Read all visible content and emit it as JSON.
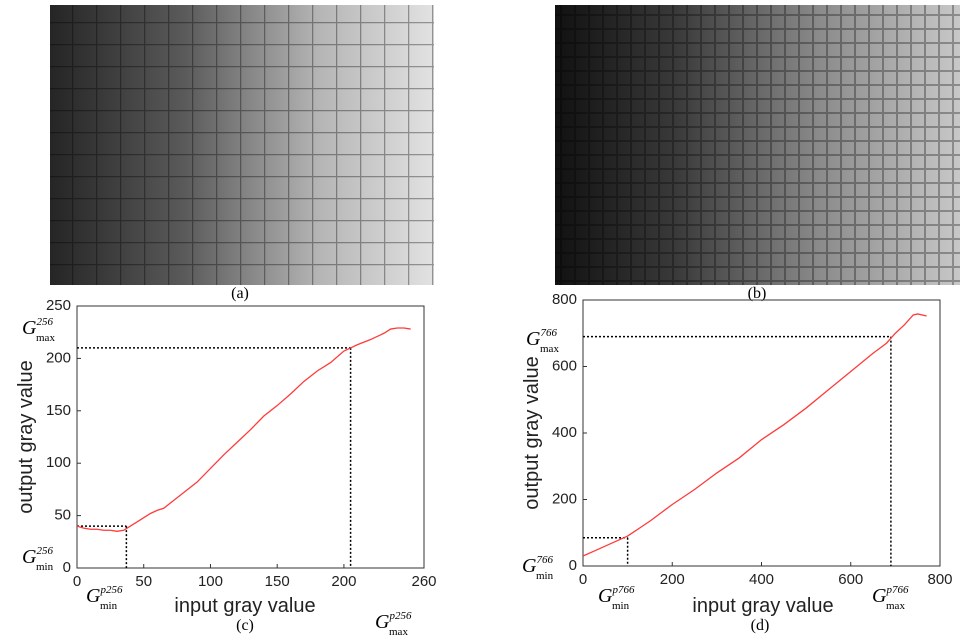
{
  "images": [
    {
      "caption": "(a)"
    },
    {
      "caption": "(b)"
    }
  ],
  "chart_data": [
    {
      "type": "line",
      "caption": "(c)",
      "xlabel": "input gray value",
      "ylabel": "output gray value",
      "xlim": [
        0,
        260
      ],
      "xticks": [
        0,
        50,
        100,
        150,
        200,
        260
      ],
      "ylim": [
        0,
        250
      ],
      "yticks": [
        0,
        50,
        100,
        150,
        200,
        250
      ],
      "series": [
        {
          "color": "#ff3b3b",
          "x": [
            0,
            5,
            10,
            15,
            20,
            25,
            30,
            35,
            40,
            45,
            50,
            55,
            60,
            65,
            70,
            80,
            90,
            100,
            110,
            120,
            130,
            140,
            150,
            160,
            170,
            180,
            190,
            200,
            205,
            210,
            220,
            230,
            235,
            240,
            245,
            250
          ],
          "values": [
            40,
            38,
            37,
            37,
            36,
            36,
            35,
            36,
            40,
            44,
            48,
            52,
            55,
            57,
            62,
            72,
            82,
            95,
            108,
            120,
            132,
            145,
            155,
            166,
            178,
            188,
            196,
            207,
            210,
            213,
            218,
            224,
            228,
            229,
            229,
            228
          ]
        }
      ],
      "guides": [
        {
          "x": 37,
          "y": 40
        },
        {
          "x": 205,
          "y": 210
        }
      ],
      "annotations": [
        {
          "base": "G",
          "sub": "max",
          "sup": "256"
        },
        {
          "base": "G",
          "sub": "min",
          "sup": "256"
        },
        {
          "base": "G",
          "sub": "min",
          "sup": "p256"
        },
        {
          "base": "G",
          "sub": "max",
          "sup": "p256"
        }
      ]
    },
    {
      "type": "line",
      "caption": "(d)",
      "xlabel": "input gray value",
      "ylabel": "output gray value",
      "xlim": [
        0,
        800
      ],
      "xticks": [
        0,
        200,
        400,
        600,
        800
      ],
      "ylim": [
        0,
        800
      ],
      "yticks": [
        0,
        200,
        400,
        600,
        800
      ],
      "series": [
        {
          "color": "#ff3b3b",
          "x": [
            0,
            25,
            50,
            75,
            100,
            150,
            200,
            250,
            300,
            350,
            400,
            450,
            500,
            550,
            600,
            650,
            680,
            700,
            720,
            740,
            750,
            770
          ],
          "values": [
            30,
            45,
            60,
            75,
            90,
            135,
            185,
            230,
            280,
            325,
            380,
            425,
            475,
            530,
            585,
            640,
            670,
            700,
            725,
            755,
            758,
            752
          ]
        }
      ],
      "guides": [
        {
          "x": 100,
          "y": 85
        },
        {
          "x": 690,
          "y": 690
        }
      ],
      "annotations": [
        {
          "base": "G",
          "sub": "max",
          "sup": "766"
        },
        {
          "base": "G",
          "sub": "min",
          "sup": "766"
        },
        {
          "base": "G",
          "sub": "min",
          "sup": "p766"
        },
        {
          "base": "G",
          "sub": "max",
          "sup": "p766"
        }
      ]
    }
  ]
}
